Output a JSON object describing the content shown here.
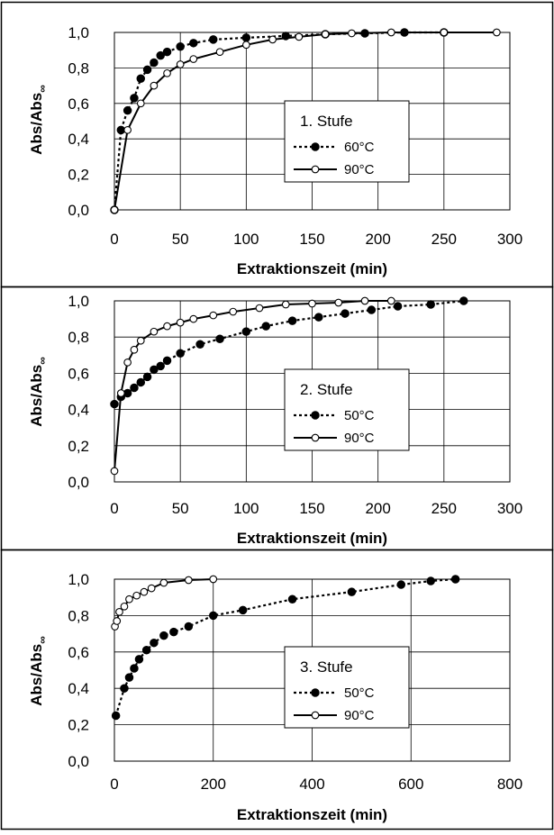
{
  "chart_data": [
    {
      "type": "line",
      "xlabel": "Extraktionszeit (min)",
      "ylabel_main": "Abs/Abs",
      "ylabel_sub": "∞",
      "xlim": [
        0,
        300
      ],
      "ylim": [
        0,
        1
      ],
      "xticks": [
        0,
        50,
        100,
        150,
        200,
        250,
        300
      ],
      "xtick_labels": [
        "0",
        "50",
        "100",
        "150",
        "200",
        "250",
        "300"
      ],
      "yticks": [
        0,
        0.2,
        0.4,
        0.6,
        0.8,
        1.0
      ],
      "ytick_labels": [
        "0,0",
        "0,2",
        "0,4",
        "0,6",
        "0,8",
        "1,0"
      ],
      "grid": true,
      "legend_title": "1. Stufe",
      "series": [
        {
          "name": "60°C",
          "line_style": "dotted",
          "marker": "filled-circle",
          "color": "#000000",
          "x": [
            0,
            5,
            10,
            15,
            20,
            25,
            30,
            35,
            40,
            50,
            60,
            75,
            100,
            130,
            160,
            190,
            220,
            250
          ],
          "y": [
            0.0,
            0.45,
            0.56,
            0.63,
            0.74,
            0.79,
            0.83,
            0.87,
            0.89,
            0.92,
            0.94,
            0.96,
            0.97,
            0.98,
            0.99,
            0.995,
            1.0,
            1.0
          ]
        },
        {
          "name": "90°C",
          "line_style": "solid",
          "marker": "open-circle",
          "color": "#000000",
          "x": [
            0,
            10,
            20,
            30,
            40,
            50,
            60,
            80,
            100,
            120,
            140,
            160,
            180,
            210,
            250,
            290
          ],
          "y": [
            0.0,
            0.45,
            0.6,
            0.7,
            0.77,
            0.82,
            0.85,
            0.89,
            0.93,
            0.96,
            0.975,
            0.99,
            0.995,
            1.0,
            1.0,
            1.0
          ]
        }
      ]
    },
    {
      "type": "line",
      "xlabel": "Extraktionszeit (min)",
      "ylabel_main": "Abs/Abs",
      "ylabel_sub": "∞",
      "xlim": [
        0,
        300
      ],
      "ylim": [
        0,
        1
      ],
      "xticks": [
        0,
        50,
        100,
        150,
        200,
        250,
        300
      ],
      "xtick_labels": [
        "0",
        "50",
        "100",
        "150",
        "200",
        "250",
        "300"
      ],
      "yticks": [
        0,
        0.2,
        0.4,
        0.6,
        0.8,
        1.0
      ],
      "ytick_labels": [
        "0,0",
        "0,2",
        "0,4",
        "0,6",
        "0,8",
        "1,0"
      ],
      "grid": true,
      "legend_title": "2. Stufe",
      "series": [
        {
          "name": "50°C",
          "line_style": "dotted",
          "marker": "filled-circle",
          "color": "#000000",
          "x": [
            0,
            5,
            10,
            15,
            20,
            25,
            30,
            35,
            40,
            50,
            65,
            80,
            100,
            115,
            135,
            155,
            175,
            195,
            215,
            240,
            265
          ],
          "y": [
            0.43,
            0.47,
            0.49,
            0.52,
            0.55,
            0.58,
            0.62,
            0.64,
            0.67,
            0.71,
            0.76,
            0.79,
            0.83,
            0.86,
            0.89,
            0.91,
            0.93,
            0.95,
            0.97,
            0.98,
            1.0
          ]
        },
        {
          "name": "90°C",
          "line_style": "solid",
          "marker": "open-circle",
          "color": "#000000",
          "x": [
            0,
            5,
            10,
            15,
            20,
            30,
            40,
            50,
            60,
            75,
            90,
            110,
            130,
            150,
            170,
            190,
            210
          ],
          "y": [
            0.06,
            0.49,
            0.66,
            0.73,
            0.78,
            0.83,
            0.86,
            0.88,
            0.9,
            0.92,
            0.94,
            0.96,
            0.98,
            0.985,
            0.99,
            1.0,
            1.0
          ]
        }
      ]
    },
    {
      "type": "line",
      "xlabel": "Extraktionszeit (min)",
      "ylabel_main": "Abs/Abs",
      "ylabel_sub": "∞",
      "xlim": [
        0,
        800
      ],
      "ylim": [
        0,
        1
      ],
      "xticks": [
        0,
        200,
        400,
        600,
        800
      ],
      "xtick_labels": [
        "0",
        "200",
        "400",
        "600",
        "800"
      ],
      "yticks": [
        0,
        0.2,
        0.4,
        0.6,
        0.8,
        1.0
      ],
      "ytick_labels": [
        "0,0",
        "0,2",
        "0,4",
        "0,6",
        "0,8",
        "1,0"
      ],
      "grid": true,
      "legend_title": "3. Stufe",
      "series": [
        {
          "name": "50°C",
          "line_style": "dotted",
          "marker": "filled-circle",
          "color": "#000000",
          "x": [
            3,
            20,
            30,
            40,
            50,
            65,
            80,
            100,
            120,
            150,
            200,
            260,
            360,
            480,
            580,
            640,
            690
          ],
          "y": [
            0.25,
            0.4,
            0.46,
            0.51,
            0.56,
            0.61,
            0.65,
            0.69,
            0.71,
            0.74,
            0.8,
            0.83,
            0.89,
            0.93,
            0.97,
            0.99,
            1.0
          ]
        },
        {
          "name": "90°C",
          "line_style": "solid",
          "marker": "open-circle",
          "color": "#000000",
          "x": [
            1,
            5,
            10,
            20,
            30,
            45,
            60,
            75,
            100,
            150,
            200
          ],
          "y": [
            0.74,
            0.77,
            0.82,
            0.85,
            0.89,
            0.91,
            0.93,
            0.95,
            0.98,
            0.995,
            1.0
          ]
        }
      ]
    }
  ]
}
